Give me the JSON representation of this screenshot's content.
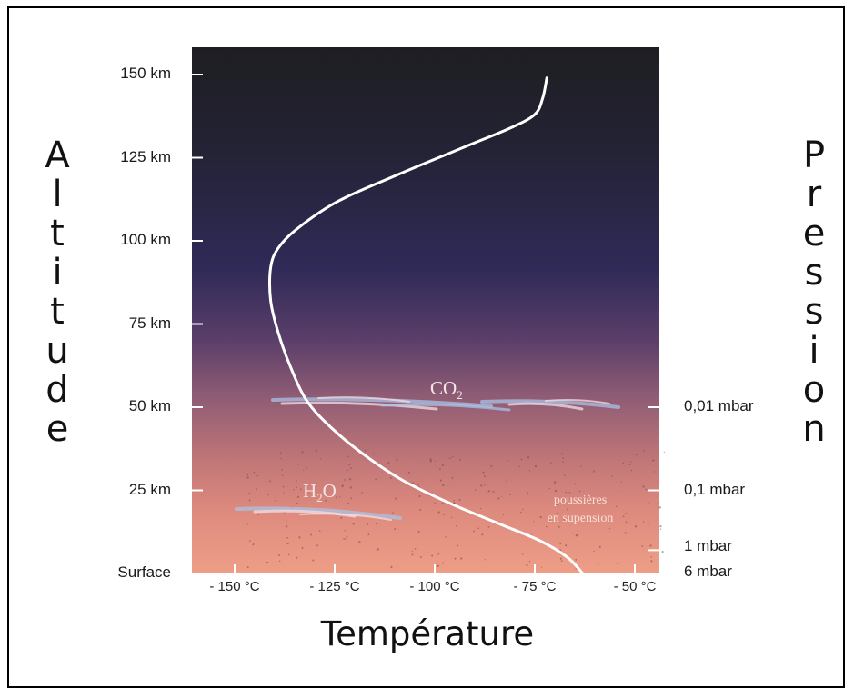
{
  "axes": {
    "left_title_letters": [
      "A",
      "l",
      "t",
      "i",
      "t",
      "u",
      "d",
      "e"
    ],
    "right_title_letters": [
      "P",
      "r",
      "e",
      "s",
      "s",
      "i",
      "o",
      "n"
    ],
    "x_title": "Température",
    "altitude_ticks": [
      {
        "label": "150  km",
        "km": 150
      },
      {
        "label": "125  km",
        "km": 125
      },
      {
        "label": "100  km",
        "km": 100
      },
      {
        "label": "75  km",
        "km": 75
      },
      {
        "label": "50  km",
        "km": 50
      },
      {
        "label": "25  km",
        "km": 25
      },
      {
        "label": "Surface",
        "km": 0
      }
    ],
    "pressure_ticks": [
      {
        "label": "0,01 mbar",
        "km": 50
      },
      {
        "label": "0,1 mbar",
        "km": 25
      },
      {
        "label": "1 mbar",
        "km": 7
      },
      {
        "label": "6  mbar",
        "km": 0
      }
    ],
    "temperature_ticks": [
      {
        "label": "- 150 °C",
        "c": -150
      },
      {
        "label": "- 125 °C",
        "c": -125
      },
      {
        "label": "- 100 °C",
        "c": -100
      },
      {
        "label": "- 75 °C",
        "c": -75
      },
      {
        "label": "- 50 °C",
        "c": -50
      }
    ]
  },
  "annotations": {
    "co2_base": "CO",
    "co2_sub": "2",
    "h2o_pre": "H",
    "h2o_sub": "2",
    "h2o_post": "O",
    "dust_line1": "poussières",
    "dust_line2": "en supension"
  },
  "chart_data": {
    "type": "line",
    "x_unit": "°C",
    "y_unit": "km",
    "xlim": [
      -167,
      -50
    ],
    "ylim": [
      0,
      150
    ],
    "series": [
      {
        "points": [
          {
            "t": -63,
            "alt": 0
          },
          {
            "t": -67,
            "alt": 5
          },
          {
            "t": -74,
            "alt": 10
          },
          {
            "t": -84,
            "alt": 15
          },
          {
            "t": -96,
            "alt": 21
          },
          {
            "t": -108,
            "alt": 28
          },
          {
            "t": -118,
            "alt": 36
          },
          {
            "t": -126,
            "alt": 44
          },
          {
            "t": -132,
            "alt": 52
          },
          {
            "t": -136,
            "alt": 62
          },
          {
            "t": -139,
            "alt": 72
          },
          {
            "t": -141,
            "alt": 82
          },
          {
            "t": -141,
            "alt": 92
          },
          {
            "t": -139,
            "alt": 98
          },
          {
            "t": -134,
            "alt": 104
          },
          {
            "t": -124,
            "alt": 112
          },
          {
            "t": -109,
            "alt": 120
          },
          {
            "t": -93,
            "alt": 128
          },
          {
            "t": -81,
            "alt": 134
          },
          {
            "t": -75,
            "alt": 138
          },
          {
            "t": -73,
            "alt": 143
          },
          {
            "t": -72,
            "alt": 149
          }
        ]
      }
    ],
    "colors": {
      "curve": "#ffffff",
      "cloud_a": "#a9c2e6",
      "cloud_b": "#f1dfe6"
    }
  }
}
